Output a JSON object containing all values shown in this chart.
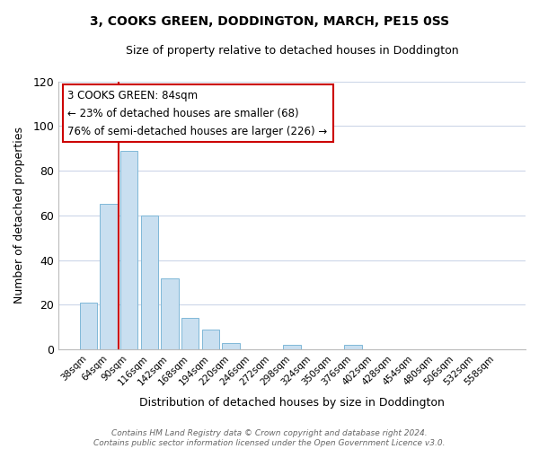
{
  "title": "3, COOKS GREEN, DODDINGTON, MARCH, PE15 0SS",
  "subtitle": "Size of property relative to detached houses in Doddington",
  "xlabel": "Distribution of detached houses by size in Doddington",
  "ylabel": "Number of detached properties",
  "bar_color": "#c9dff0",
  "bar_edge_color": "#7fb8d8",
  "bin_labels": [
    "38sqm",
    "64sqm",
    "90sqm",
    "116sqm",
    "142sqm",
    "168sqm",
    "194sqm",
    "220sqm",
    "246sqm",
    "272sqm",
    "298sqm",
    "324sqm",
    "350sqm",
    "376sqm",
    "402sqm",
    "428sqm",
    "454sqm",
    "480sqm",
    "506sqm",
    "532sqm",
    "558sqm"
  ],
  "bar_heights": [
    21,
    65,
    89,
    60,
    32,
    14,
    9,
    3,
    0,
    0,
    2,
    0,
    0,
    2,
    0,
    0,
    0,
    0,
    0,
    0,
    0
  ],
  "ylim": [
    0,
    120
  ],
  "yticks": [
    0,
    20,
    40,
    60,
    80,
    100,
    120
  ],
  "vline_x": 1.5,
  "vline_color": "#cc0000",
  "annotation_line1": "3 COOKS GREEN: 84sqm",
  "annotation_line2": "← 23% of detached houses are smaller (68)",
  "annotation_line3": "76% of semi-detached houses are larger (226) →",
  "annotation_box_color": "#ffffff",
  "annotation_box_edge": "#cc0000",
  "footer_text": "Contains HM Land Registry data © Crown copyright and database right 2024.\nContains public sector information licensed under the Open Government Licence v3.0.",
  "background_color": "#ffffff",
  "grid_color": "#ccd6e8"
}
